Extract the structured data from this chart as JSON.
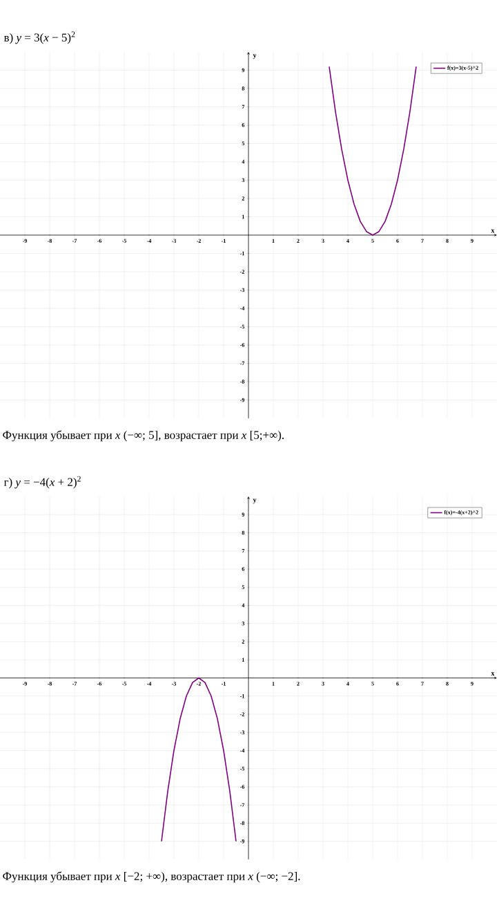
{
  "chart_data": [
    {
      "type": "line",
      "title": "в) *y* = 3(*x* − 5)$^{2}$",
      "xlabel": "x",
      "ylabel": "y",
      "x": [
        3.25,
        3.5,
        3.75,
        4,
        4.25,
        4.5,
        4.75,
        5,
        5.25,
        5.5,
        5.75,
        6,
        6.25,
        6.5,
        6.75
      ],
      "series": [
        {
          "name": "f(x)=3(x-5)^2",
          "color": "#800080",
          "values": [
            9.19,
            6.75,
            4.69,
            3,
            1.69,
            0.75,
            0.19,
            0,
            0.19,
            0.75,
            1.69,
            3,
            4.69,
            6.75,
            9.19
          ]
        }
      ],
      "xlim": [
        -10,
        10
      ],
      "ylim": [
        -10,
        10
      ],
      "xticks": [
        -9,
        -8,
        -7,
        -6,
        -5,
        -4,
        -3,
        -2,
        -1,
        1,
        2,
        3,
        4,
        5,
        6,
        7,
        8,
        9
      ],
      "yticks": [
        -9,
        -8,
        -7,
        -6,
        -5,
        -4,
        -3,
        -2,
        -1,
        1,
        2,
        3,
        4,
        5,
        6,
        7,
        8,
        9
      ],
      "grid": true,
      "legend": "top right",
      "annotations": [
        "Функция убывает при *x* (−∞;  5], возрастает при *x* [5;+∞)."
      ]
    },
    {
      "type": "line",
      "title": "г) *y* = −4(*x* + 2)$^{2}$",
      "xlabel": "x",
      "ylabel": "y",
      "x": [
        -3.5,
        -3.25,
        -3,
        -2.75,
        -2.5,
        -2.25,
        -2,
        -1.75,
        -1.5,
        -1.25,
        -1,
        -0.75,
        -0.5
      ],
      "series": [
        {
          "name": "f(x)=-4(x+2)^2",
          "color": "#800080",
          "values": [
            -9,
            -6.25,
            -4,
            -2.25,
            -1,
            -0.25,
            0,
            -0.25,
            -1,
            -2.25,
            -4,
            -6.25,
            -9
          ]
        }
      ],
      "xlim": [
        -10,
        10
      ],
      "ylim": [
        -10,
        10
      ],
      "xticks": [
        -9,
        -8,
        -7,
        -6,
        -5,
        -4,
        -3,
        -2,
        -1,
        1,
        2,
        3,
        4,
        5,
        6,
        7,
        8,
        9
      ],
      "yticks": [
        -9,
        -8,
        -7,
        -6,
        -5,
        -4,
        -3,
        -2,
        -1,
        1,
        2,
        3,
        4,
        5,
        6,
        7,
        8,
        9
      ],
      "grid": true,
      "legend": "top right",
      "annotations": [
        "Функция убывает при *x* [−2; +∞), возрастает при *x* (−∞; −2]."
      ]
    }
  ]
}
